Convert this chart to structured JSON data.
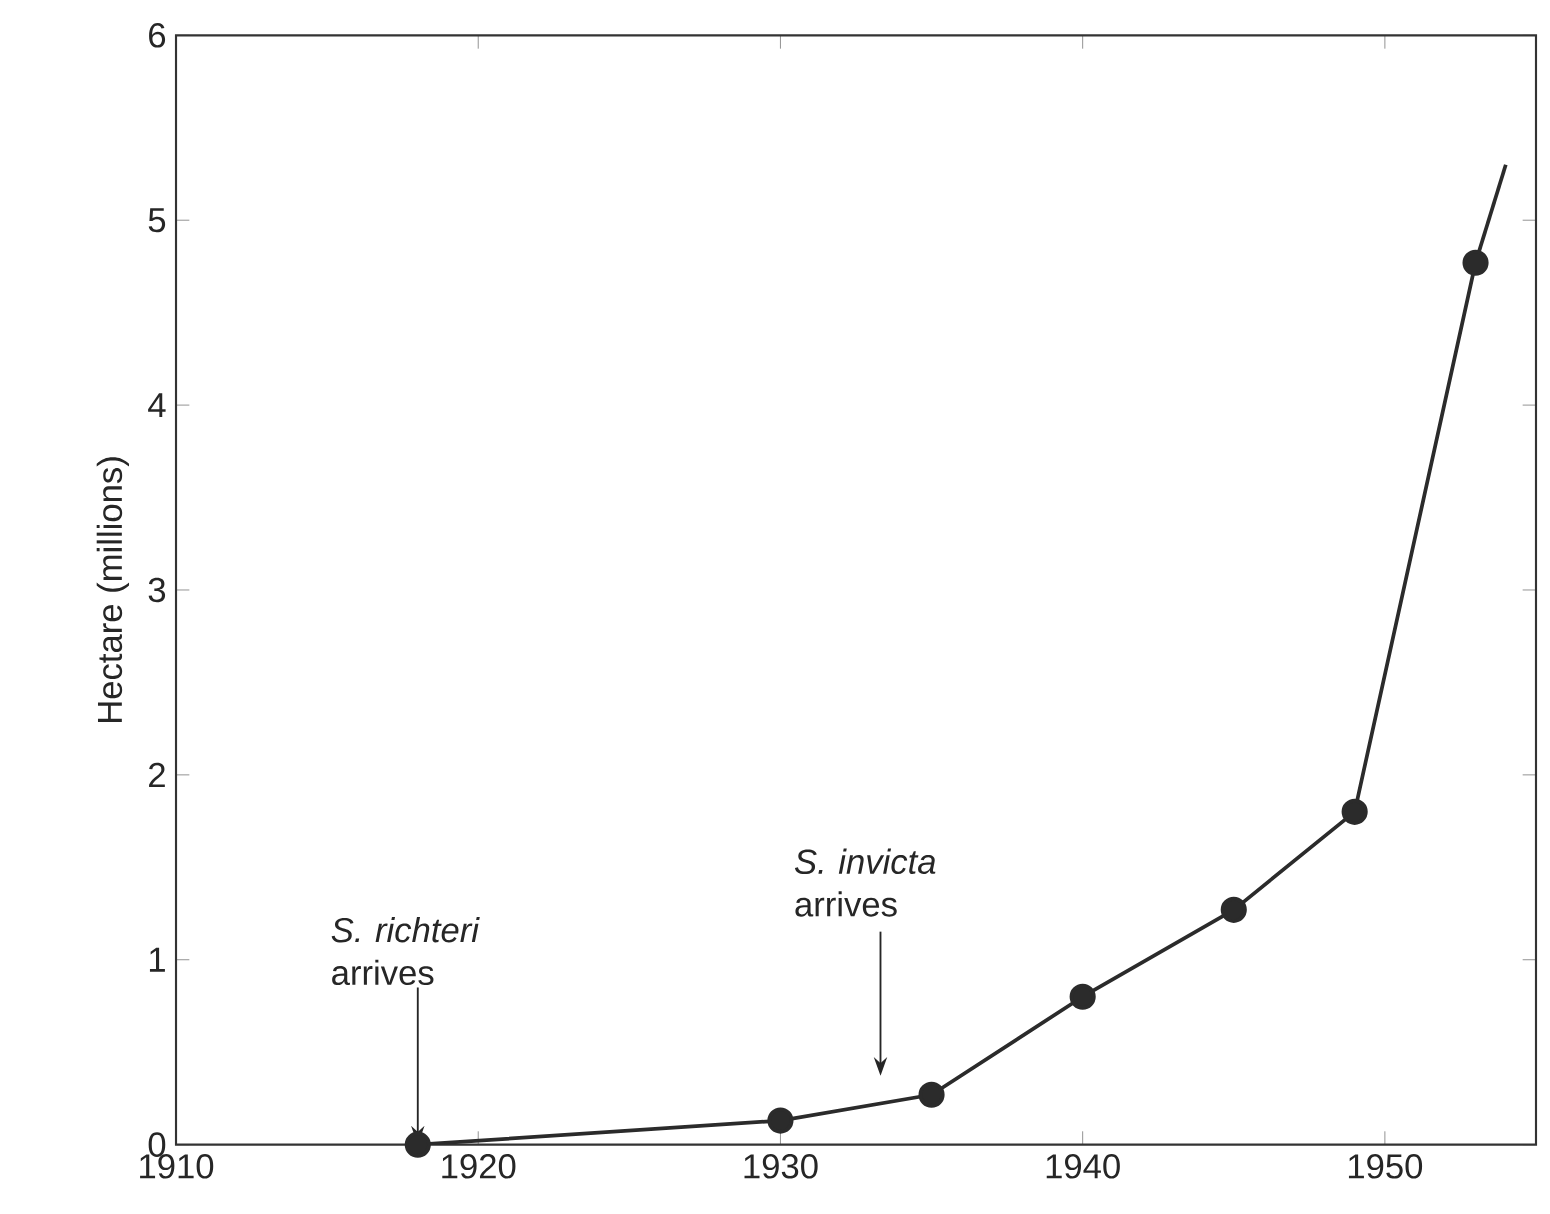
{
  "chart_data": {
    "type": "line",
    "ylabel": "Hectare (millions)",
    "xlim": [
      1910,
      1955
    ],
    "ylim": [
      0,
      6
    ],
    "xticks": [
      1910,
      1920,
      1930,
      1940,
      1950
    ],
    "yticks": [
      0,
      1,
      2,
      3,
      4,
      5,
      6
    ],
    "marker": "circle",
    "grid": false,
    "series": [
      {
        "color": "#2b2b2b",
        "x": [
          1918,
          1930,
          1935,
          1940,
          1945,
          1949,
          1953
        ],
        "values": [
          0,
          0.13,
          0.27,
          0.8,
          1.27,
          1.8,
          4.77
        ]
      },
      {
        "color": "#2b2b2b",
        "type": "line",
        "marker": "none",
        "x": [
          1953,
          1954
        ],
        "values": [
          4.77,
          5.3
        ]
      }
    ],
    "annotations": [
      {
        "text": "*S. richteri* arrives",
        "x": 1918,
        "y": 0
      },
      "*S. invicta* arrives"
    ]
  }
}
